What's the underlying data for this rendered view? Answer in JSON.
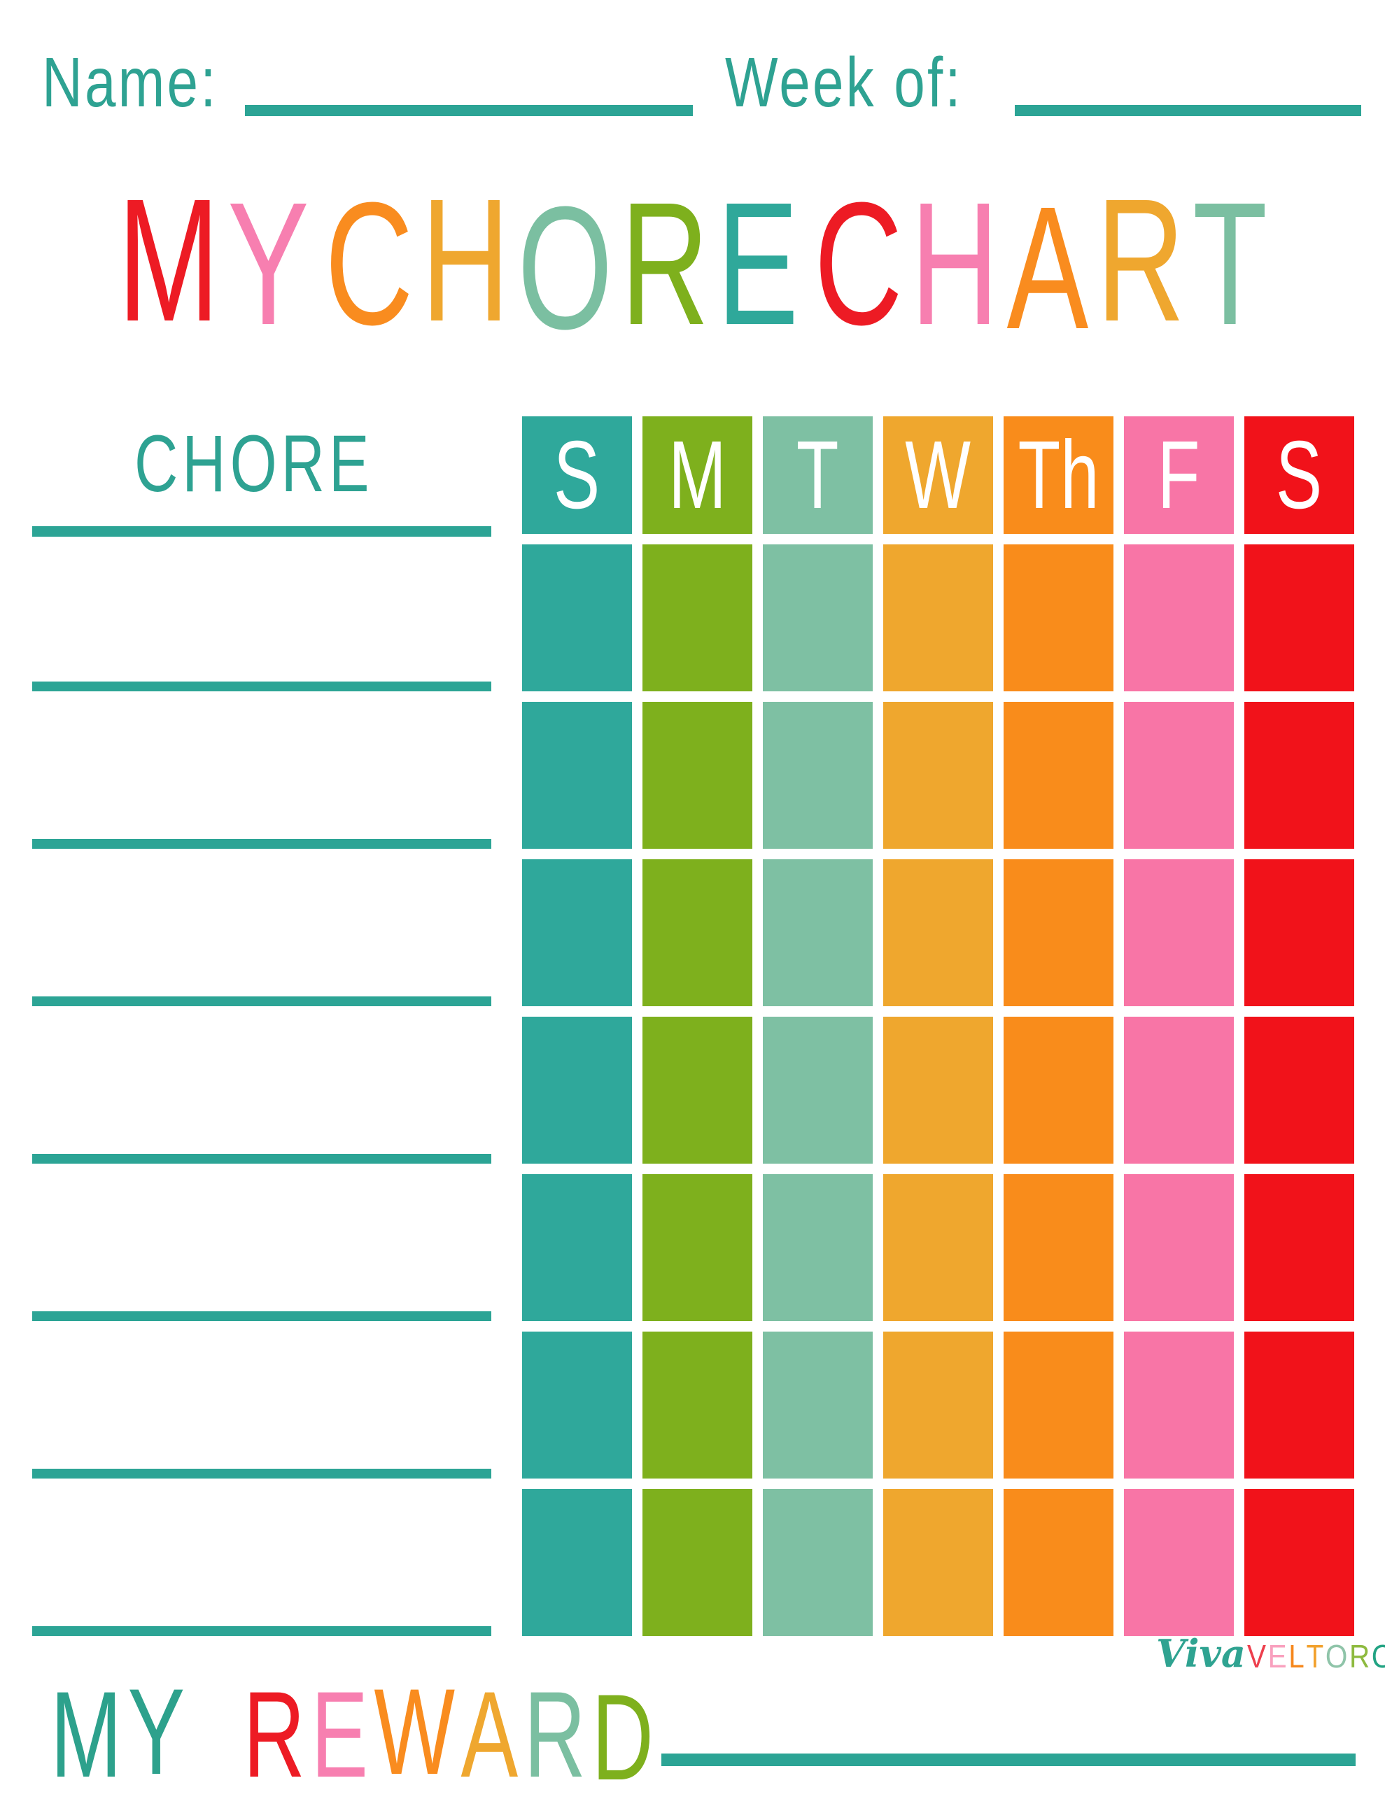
{
  "page": {
    "background": "#FFFFFF"
  },
  "top_fields": {
    "name_label": "Name:",
    "week_of_label": "Week of:",
    "text_color": "#2EA292",
    "line_color": "#2CA495"
  },
  "title": {
    "text": "MY CHORE CHART",
    "letters": [
      {
        "ch": "M",
        "color": "#ED1B24"
      },
      {
        "ch": "Y",
        "color": "#F77FB0"
      },
      {
        "ch": " "
      },
      {
        "ch": "C",
        "color": "#F98C1F"
      },
      {
        "ch": "H",
        "color": "#EFA72F"
      },
      {
        "ch": "O",
        "color": "#7BBFA1"
      },
      {
        "ch": "R",
        "color": "#7EB01D"
      },
      {
        "ch": "E",
        "color": "#2FA89A"
      },
      {
        "ch": " "
      },
      {
        "ch": "C",
        "color": "#ED1B24"
      },
      {
        "ch": "H",
        "color": "#F77FB0"
      },
      {
        "ch": "A",
        "color": "#F98C1F"
      },
      {
        "ch": "R",
        "color": "#EFA72F"
      },
      {
        "ch": "T",
        "color": "#7BBFA1"
      }
    ]
  },
  "chore_column": {
    "heading": "CHORE",
    "heading_color": "#2EA292",
    "line_color": "#2CA495",
    "blank_line_count": 7
  },
  "week_grid": {
    "day_letter_color": "#FFFFFF",
    "body_rows": 7,
    "columns": [
      {
        "label": "S",
        "color": "#2FA89B"
      },
      {
        "label": "M",
        "color": "#7EB01D"
      },
      {
        "label": "T",
        "color": "#7EC0A3"
      },
      {
        "label": "W",
        "color": "#EFA72E"
      },
      {
        "label": "Th",
        "color": "#F98C1B"
      },
      {
        "label": "F",
        "color": "#F875A6"
      },
      {
        "label": "S",
        "color": "#F1121A"
      }
    ]
  },
  "reward": {
    "text": "MY REWARD",
    "line_color": "#2CA495",
    "letters": [
      {
        "ch": "M",
        "color": "#2DA18C"
      },
      {
        "ch": "Y",
        "color": "#2DA18C"
      },
      {
        "ch": " "
      },
      {
        "ch": "R",
        "color": "#ED1B24"
      },
      {
        "ch": "E",
        "color": "#F77FB0"
      },
      {
        "ch": "W",
        "color": "#F98C1F"
      },
      {
        "ch": "A",
        "color": "#EFA72F"
      },
      {
        "ch": "R",
        "color": "#7BBFA1"
      },
      {
        "ch": "D",
        "color": "#7EB01D"
      }
    ]
  },
  "logo": {
    "text": "VivaVELTORO",
    "script_text": "Viva",
    "script_color": "#2FA391",
    "caps_letters": [
      {
        "ch": "V",
        "color": "#ED3F4D"
      },
      {
        "ch": "E",
        "color": "#F9A0BE"
      },
      {
        "ch": "L",
        "color": "#F6871B"
      },
      {
        "ch": "T",
        "color": "#F2A12D"
      },
      {
        "ch": "O",
        "color": "#8FC4A9"
      },
      {
        "ch": "R",
        "color": "#8EBA3F"
      },
      {
        "ch": "O",
        "color": "#22A383"
      }
    ]
  }
}
